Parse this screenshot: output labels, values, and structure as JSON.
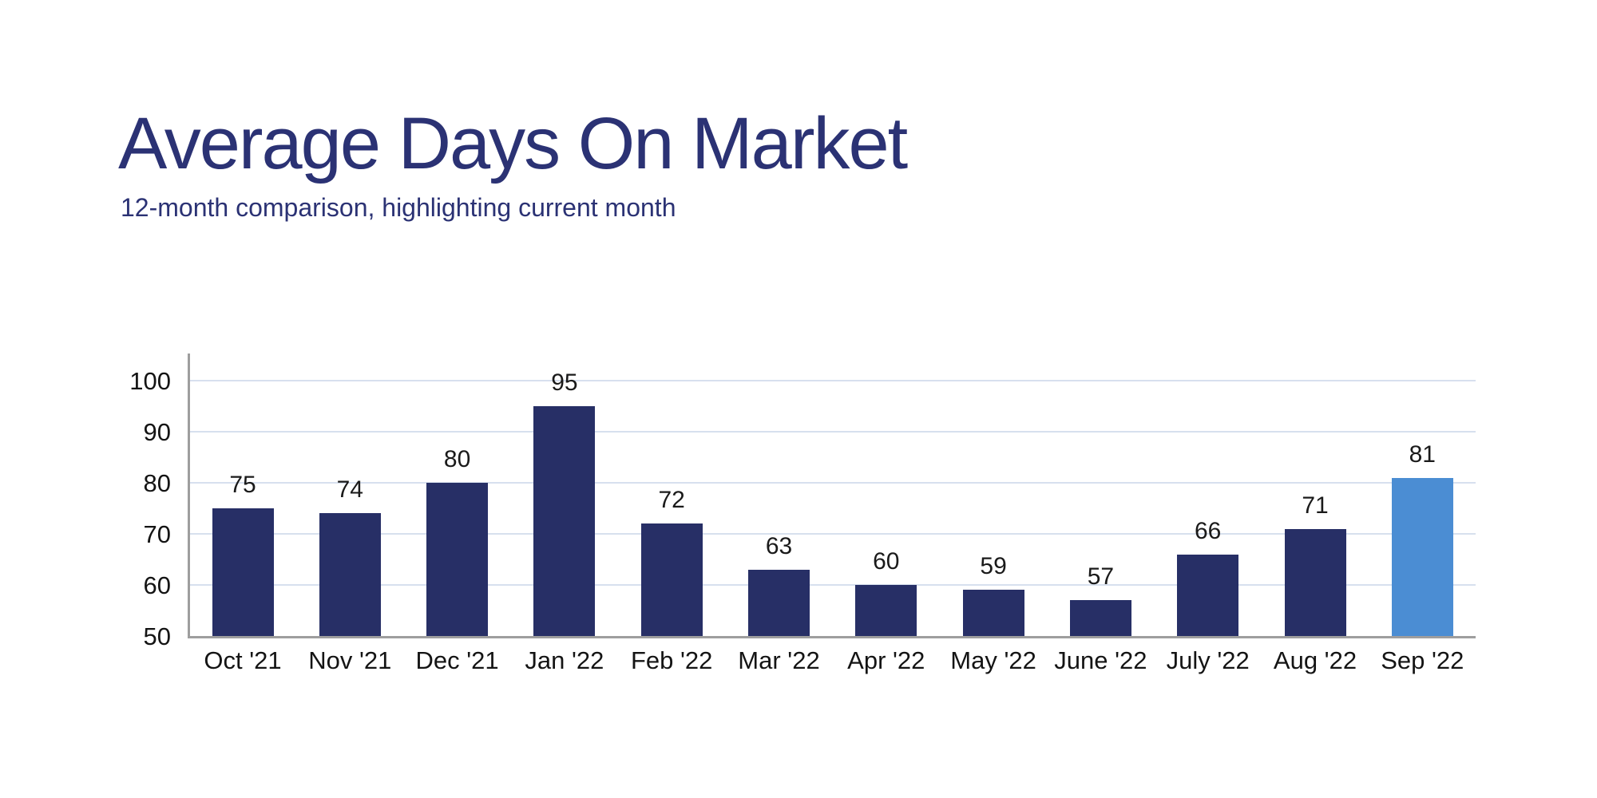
{
  "page": {
    "title": "Average Days On Market",
    "subtitle": "12-month comparison, highlighting current month"
  },
  "colors": {
    "heading_text": "#2B3274",
    "tick_text": "#141414",
    "value_text": "#1A1A1A",
    "bar": "#272F66",
    "bar_highlight": "#4B8DD3",
    "gridline": "#D7E0EE",
    "axis": "#9E9E9E"
  },
  "chart_data": {
    "type": "bar",
    "title": "Average Days On Market",
    "subtitle": "12-month comparison, highlighting current month",
    "categories": [
      "Oct '21",
      "Nov '21",
      "Dec '21",
      "Jan '22",
      "Feb '22",
      "Mar '22",
      "Apr '22",
      "May '22",
      "June '22",
      "July '22",
      "Aug '22",
      "Sep '22"
    ],
    "values": [
      75,
      74,
      80,
      95,
      72,
      63,
      60,
      59,
      57,
      66,
      71,
      81
    ],
    "value_labels": [
      "75",
      "74",
      "80",
      "95",
      "72",
      "63",
      "60",
      "59",
      "57",
      "66",
      "71",
      "81"
    ],
    "highlight_index": 11,
    "highlight_category": "Sep '22",
    "highlight_meaning": "current month",
    "xlabel": "",
    "ylabel": "",
    "ylim": [
      50,
      105
    ],
    "yticks": [
      50,
      60,
      70,
      80,
      90,
      100
    ],
    "grid": true,
    "legend": false
  }
}
